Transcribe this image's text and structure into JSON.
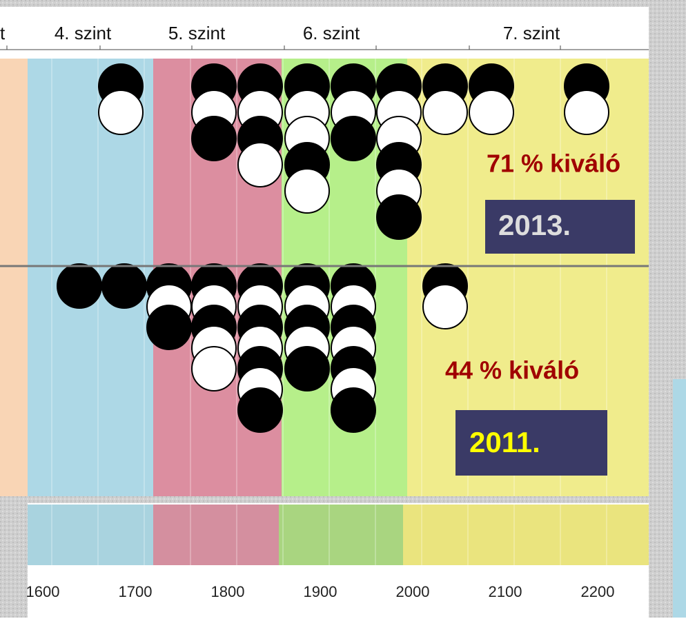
{
  "header": {
    "levels": [
      "t",
      "4. szint",
      "5. szint",
      "6. szint",
      "7. szint"
    ]
  },
  "panels": [
    {
      "percent_text": "71 % kiváló",
      "year": "2013."
    },
    {
      "percent_text": "44 % kiváló",
      "year": "2011."
    }
  ],
  "axis": {
    "labels": [
      "1600",
      "1700",
      "1800",
      "1900",
      "2000",
      "2100",
      "2200"
    ]
  }
}
